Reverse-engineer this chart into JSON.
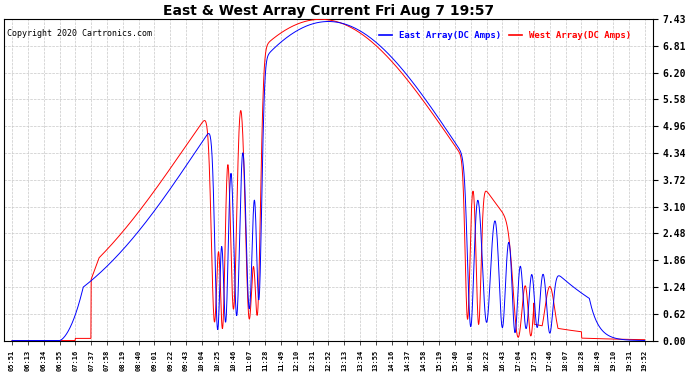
{
  "title": "East & West Array Current Fri Aug 7 19:57",
  "copyright": "Copyright 2020 Cartronics.com",
  "legend_east": "East Array(DC Amps)",
  "legend_west": "West Array(DC Amps)",
  "east_color": "blue",
  "west_color": "red",
  "bg_color": "#ffffff",
  "grid_color": "#c8c8c8",
  "yticks": [
    0.0,
    0.62,
    1.24,
    1.86,
    2.48,
    3.1,
    3.72,
    4.34,
    4.96,
    5.58,
    6.2,
    6.81,
    7.43
  ],
  "ymax": 7.43,
  "ymin": 0.0,
  "xtick_labels": [
    "05:51",
    "06:13",
    "06:34",
    "06:55",
    "07:16",
    "07:37",
    "07:58",
    "08:19",
    "08:40",
    "09:01",
    "09:22",
    "09:43",
    "10:04",
    "10:25",
    "10:46",
    "11:07",
    "11:28",
    "11:49",
    "12:10",
    "12:31",
    "12:52",
    "13:13",
    "13:34",
    "13:55",
    "14:16",
    "14:37",
    "14:58",
    "15:19",
    "15:40",
    "16:01",
    "16:22",
    "16:43",
    "17:04",
    "17:25",
    "17:46",
    "18:07",
    "18:28",
    "18:49",
    "19:10",
    "19:31",
    "19:52"
  ],
  "n_points": 41,
  "figwidth": 6.9,
  "figheight": 3.75,
  "dpi": 100
}
